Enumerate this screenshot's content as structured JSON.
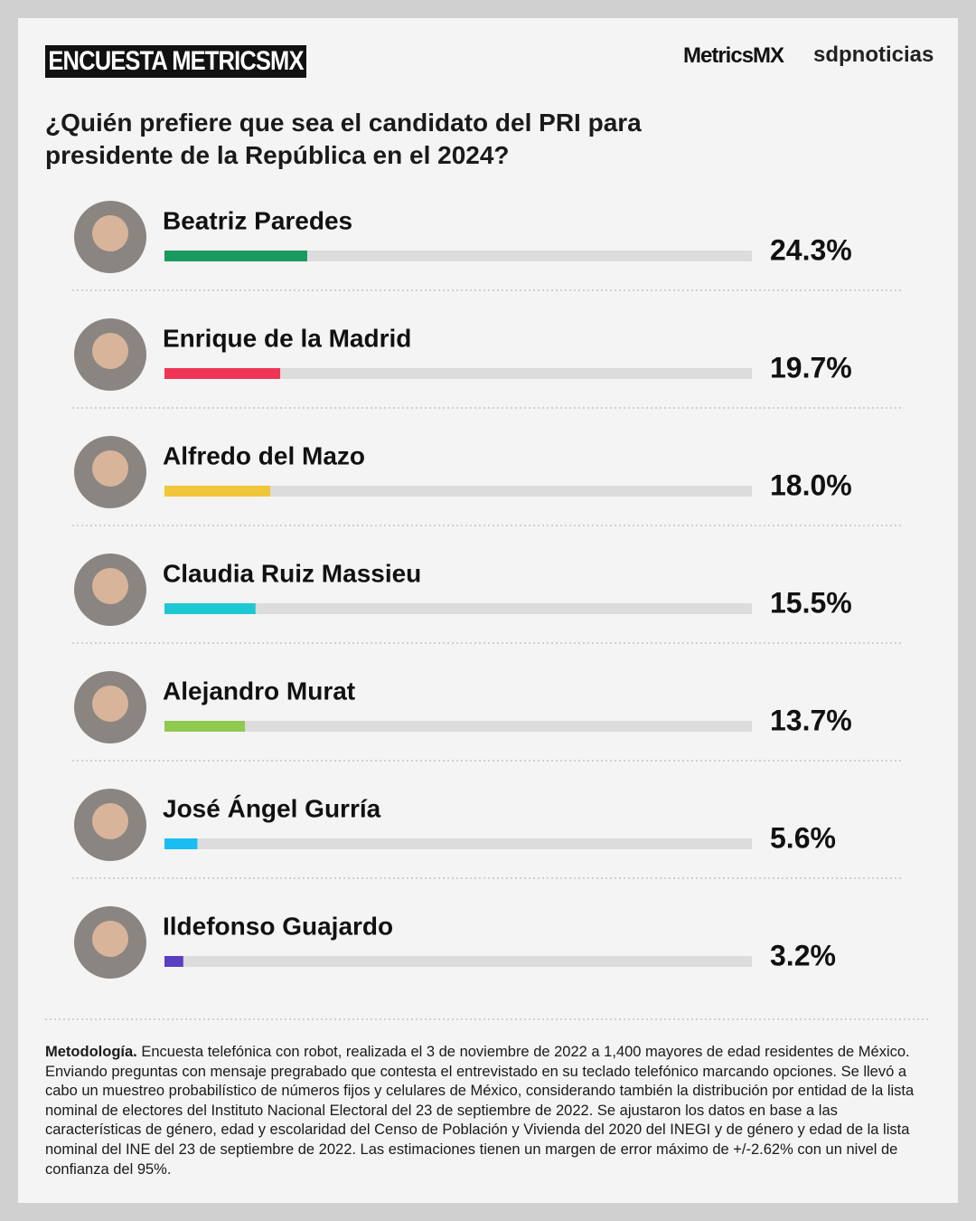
{
  "header": {
    "badge": "ENCUESTA METRICSMX",
    "logo_left": "MetricsMX",
    "logo_right": "sdpnoticias"
  },
  "chart_data": {
    "type": "bar",
    "title": "¿Quién prefiere que sea el candidato del PRI para presidente de la República en el 2024?",
    "categories": [
      "Beatriz Paredes",
      "Enrique de la Madrid",
      "Alfredo del Mazo",
      "Claudia Ruiz Massieu",
      "Alejandro Murat",
      "José Ángel Gurría",
      "Ildefonso Guajardo"
    ],
    "values": [
      24.3,
      19.7,
      18.0,
      15.5,
      13.7,
      5.6,
      3.2
    ],
    "value_labels": [
      "24.3%",
      "19.7%",
      "18.0%",
      "15.5%",
      "13.7%",
      "5.6%",
      "3.2%"
    ],
    "colors": [
      "#1a9a60",
      "#ef3556",
      "#f0c63a",
      "#1ec8d2",
      "#8fc94f",
      "#19bdf2",
      "#5a3fc0"
    ],
    "xlim": [
      0,
      100
    ]
  },
  "footer": {
    "lead": "Metodología.",
    "text": "Encuesta telefónica con robot, realizada el 3 de noviembre de 2022 a 1,400 mayores de edad residentes de México. Enviando preguntas con mensaje pregrabado que contesta el entrevistado en su teclado telefónico marcando opciones. Se llevó a cabo un muestreo probabilístico de números fijos y celulares de México, considerando también la distribución por entidad de la lista nominal de electores del Instituto Nacional Electoral del 23 de septiembre de 2022. Se ajustaron los datos en base a las características de género, edad y escolaridad del Censo de Población y Vivienda del 2020 del INEGI y de género y edad de la lista nominal del INE del 23 de septiembre de 2022. Las estimaciones tienen un margen de error máximo de +/-2.62% con un nivel de confianza del 95%."
  }
}
